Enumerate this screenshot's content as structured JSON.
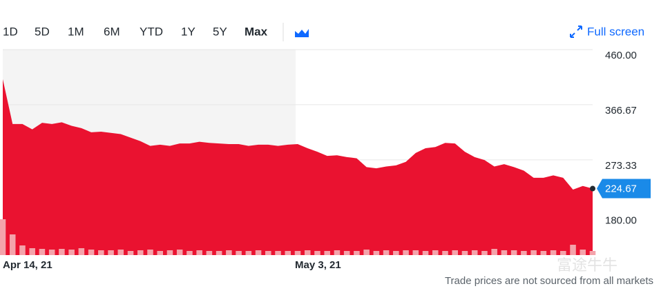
{
  "toolbar": {
    "ranges": [
      "1D",
      "5D",
      "1M",
      "6M",
      "YTD",
      "1Y",
      "5Y",
      "Max"
    ],
    "active": 7,
    "fullscreen": "Full screen"
  },
  "chart_data": {
    "type": "area",
    "categories": [
      "Apr 14, 21",
      null,
      null,
      null,
      null,
      null,
      null,
      null,
      null,
      null,
      null,
      null,
      null,
      null,
      null,
      null,
      null,
      null,
      null,
      null,
      null,
      null,
      null,
      null,
      null,
      null,
      null,
      null,
      null,
      null,
      "May 3, 21",
      null,
      null,
      null,
      null,
      null,
      null,
      null,
      null,
      null,
      null,
      null,
      null,
      null,
      null,
      null,
      null,
      null,
      null,
      null,
      null,
      null,
      null,
      null,
      null,
      null,
      null,
      null,
      null,
      null,
      null
    ],
    "series": [
      {
        "name": "Price",
        "color": "#ea1230",
        "values": [
          410,
          334,
          334,
          325,
          336,
          334,
          337,
          331,
          327,
          320,
          321,
          319,
          317,
          311,
          305,
          297,
          299,
          297,
          301,
          301,
          304,
          302,
          301,
          300,
          300,
          297,
          299,
          299,
          297,
          299,
          300,
          293,
          287,
          280,
          281,
          278,
          276,
          261,
          259,
          262,
          264,
          270,
          285,
          293,
          295,
          302,
          301,
          287,
          278,
          273,
          262,
          266,
          261,
          255,
          243,
          243,
          247,
          243,
          223,
          229,
          224.67
        ]
      },
      {
        "name": "Volume",
        "color": "#f4a3ab",
        "values": [
          52,
          30,
          14,
          10,
          9,
          8,
          9,
          8,
          10,
          8,
          7,
          7,
          8,
          6,
          7,
          8,
          6,
          7,
          8,
          6,
          7,
          6,
          6,
          7,
          6,
          6,
          7,
          6,
          6,
          6,
          6,
          7,
          6,
          6,
          7,
          6,
          6,
          8,
          6,
          7,
          6,
          7,
          7,
          6,
          7,
          6,
          7,
          6,
          7,
          6,
          9,
          7,
          7,
          6,
          7,
          6,
          7,
          6,
          15,
          8,
          6
        ]
      }
    ],
    "ylim": [
      112,
      460
    ],
    "yticks": [
      {
        "value": 460,
        "label": "460.00"
      },
      {
        "value": 366.67,
        "label": "366.67"
      },
      {
        "value": 273.33,
        "label": "273.33"
      },
      {
        "value": 180,
        "label": "180.00"
      }
    ],
    "vlim": [
      0,
      100
    ],
    "grid": true
  },
  "watermark": "富途牛牛",
  "footnote": "Trade prices are not sourced from all markets"
}
